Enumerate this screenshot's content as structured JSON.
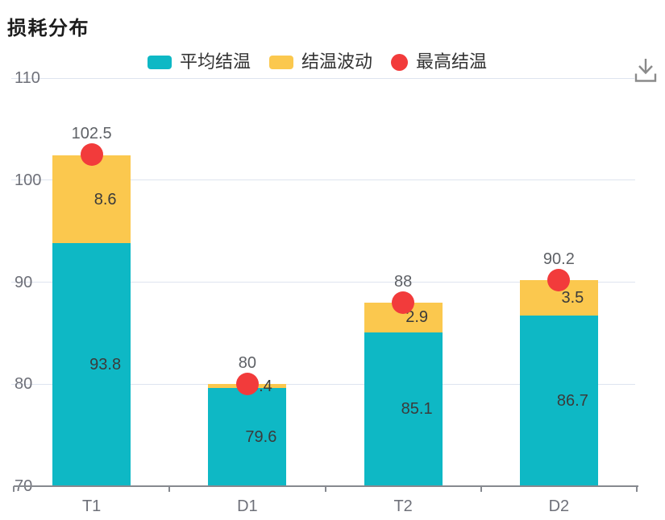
{
  "title": "损耗分布",
  "legend": {
    "items": [
      {
        "label": "平均结温",
        "color": "#0EB8C5",
        "shape": "roundRect"
      },
      {
        "label": "结温波动",
        "color": "#FBC84E",
        "shape": "roundRect"
      },
      {
        "label": "最高结温",
        "color": "#F23B3B",
        "shape": "circle"
      }
    ]
  },
  "toolbox": {
    "icon": "download-icon"
  },
  "chart_data": {
    "type": "bar",
    "stacked": true,
    "categories": [
      "T1",
      "D1",
      "T2",
      "D2"
    ],
    "series": [
      {
        "name": "平均结温",
        "type": "bar",
        "stack": "total",
        "color": "#0EB8C5",
        "values": [
          93.8,
          79.6,
          85.1,
          86.7
        ]
      },
      {
        "name": "结温波动",
        "type": "bar",
        "stack": "total",
        "color": "#FBC84E",
        "values": [
          8.6,
          0.4,
          2.9,
          3.5
        ]
      },
      {
        "name": "最高结温",
        "type": "scatter",
        "color": "#F23B3B",
        "values": [
          102.5,
          80,
          88,
          90.2
        ]
      }
    ],
    "title": "损耗分布",
    "xlabel": "",
    "ylabel": "",
    "ylim": [
      70,
      110
    ],
    "yticks": [
      70,
      80,
      90,
      100,
      110
    ],
    "grid": true,
    "legend_position": "top"
  },
  "colors": {
    "background": "#FFFFFF",
    "gridline": "#DEE4EF",
    "axis_line": "#86898F",
    "axis_label": "#6E7079",
    "inside_label": "#3B3B3B",
    "max_label": "#5E6166",
    "legend_text": "#333333",
    "title_text": "#1C1C1C",
    "toolbox_icon": "#8A8A8A"
  }
}
